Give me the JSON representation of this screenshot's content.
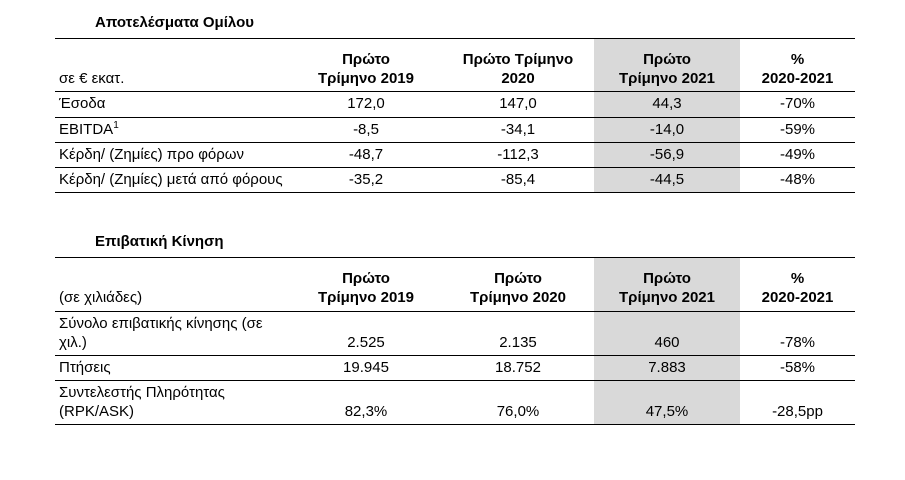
{
  "highlight_color": "#d9d9d9",
  "group_results": {
    "title": "Αποτελέσματα Ομίλου",
    "unit_label": "σε € εκατ.",
    "headers": [
      {
        "line1": "Πρώτο",
        "line2": "Τρίμηνο 2019"
      },
      {
        "line1": "Πρώτο Τρίμηνο",
        "line2": "2020"
      },
      {
        "line1": "Πρώτο",
        "line2": "Τρίμηνο 2021"
      },
      {
        "line1": "%",
        "line2": "2020-2021"
      }
    ],
    "rows": [
      {
        "label": "Έσοδα",
        "q1_2019": "172,0",
        "q1_2020": "147,0",
        "q1_2021": "44,3",
        "pct": "-70%"
      },
      {
        "label": "EBITDA",
        "label_sup": "1",
        "q1_2019": "-8,5",
        "q1_2020": "-34,1",
        "q1_2021": "-14,0",
        "pct": "-59%"
      },
      {
        "label": "Κέρδη/ (Ζημίες) προ φόρων",
        "q1_2019": "-48,7",
        "q1_2020": "-112,3",
        "q1_2021": "-56,9",
        "pct": "-49%"
      },
      {
        "label": "Κέρδη/ (Ζημίες) μετά από φόρους",
        "q1_2019": "-35,2",
        "q1_2020": "-85,4",
        "q1_2021": "-44,5",
        "pct": "-48%"
      }
    ]
  },
  "passenger_traffic": {
    "title": "Επιβατική Κίνηση",
    "unit_label": "(σε χιλιάδες)",
    "headers": [
      {
        "line1": "Πρώτο",
        "line2": "Τρίμηνο 2019"
      },
      {
        "line1": "Πρώτο",
        "line2": "Τρίμηνο 2020"
      },
      {
        "line1": "Πρώτο",
        "line2": "Τρίμηνο 2021"
      },
      {
        "line1": "%",
        "line2": "2020-2021"
      }
    ],
    "rows": [
      {
        "label": "Σύνολο επιβατικής κίνησης (σε χιλ.)",
        "q1_2019": "2.525",
        "q1_2020": "2.135",
        "q1_2021": "460",
        "pct": "-78%"
      },
      {
        "label": "Πτήσεις",
        "q1_2019": "19.945",
        "q1_2020": "18.752",
        "q1_2021": "7.883",
        "pct": "-58%"
      },
      {
        "label": "Συντελεστής Πληρότητας (RPK/ASK)",
        "q1_2019": "82,3%",
        "q1_2020": "76,0%",
        "q1_2021": "47,5%",
        "pct": "-28,5pp"
      }
    ]
  }
}
